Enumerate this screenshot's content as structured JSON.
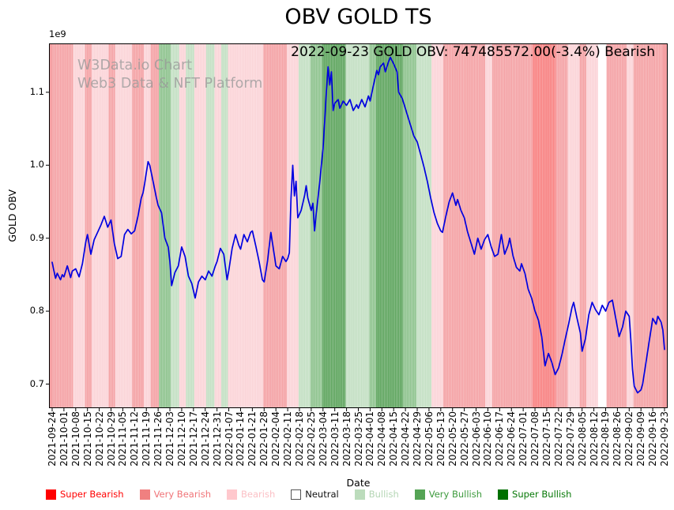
{
  "chart_data": {
    "type": "line",
    "title": "OBV GOLD TS",
    "annotation": "2022-09-23 GOLD OBV: 747485572.00(-3.4%) Bearish",
    "watermark": {
      "line1": "W3Data.io Chart",
      "line2": "Web3 Data & NFT Platform"
    },
    "xlabel": "Date",
    "ylabel": "GOLD OBV",
    "y_offset_text": "1e9",
    "ylim": [
      0.667,
      1.167
    ],
    "yticks": [
      "0.7",
      "0.8",
      "0.9",
      "1.0",
      "1.1"
    ],
    "x_tick_interval_days": 7,
    "xticks": [
      "2021-09-24",
      "2021-10-01",
      "2021-10-08",
      "2021-10-15",
      "2021-10-22",
      "2021-10-29",
      "2021-11-05",
      "2021-11-12",
      "2021-11-19",
      "2021-11-26",
      "2021-12-03",
      "2021-12-10",
      "2021-12-17",
      "2021-12-24",
      "2021-12-31",
      "2022-01-07",
      "2022-01-14",
      "2022-01-21",
      "2022-01-28",
      "2022-02-04",
      "2022-02-11",
      "2022-02-18",
      "2022-02-25",
      "2022-03-04",
      "2022-03-11",
      "2022-03-18",
      "2022-03-25",
      "2022-04-01",
      "2022-04-08",
      "2022-04-15",
      "2022-04-22",
      "2022-04-29",
      "2022-05-06",
      "2022-05-13",
      "2022-05-20",
      "2022-05-27",
      "2022-06-03",
      "2022-06-10",
      "2022-06-17",
      "2022-06-24",
      "2022-07-01",
      "2022-07-08",
      "2022-07-15",
      "2022-07-22",
      "2022-07-29",
      "2022-08-05",
      "2022-08-12",
      "2022-08-19",
      "2022-08-26",
      "2022-09-02",
      "2022-09-09",
      "2022-09-16",
      "2022-09-23"
    ],
    "last_point": {
      "date": "2022-09-23",
      "value": "747485572.00",
      "change_pct": "-3.4%",
      "sentiment": "Bearish"
    },
    "series": [
      {
        "name": "GOLD OBV",
        "color": "#0000e0",
        "x_unit": "days_since_2021-09-24",
        "y_unit": "1e9",
        "points": [
          [
            0,
            0.867
          ],
          [
            1,
            0.856
          ],
          [
            2,
            0.845
          ],
          [
            3,
            0.852
          ],
          [
            5,
            0.843
          ],
          [
            6,
            0.85
          ],
          [
            7,
            0.847
          ],
          [
            9,
            0.862
          ],
          [
            11,
            0.846
          ],
          [
            12,
            0.855
          ],
          [
            14,
            0.858
          ],
          [
            16,
            0.847
          ],
          [
            18,
            0.865
          ],
          [
            20,
            0.895
          ],
          [
            21,
            0.905
          ],
          [
            23,
            0.878
          ],
          [
            25,
            0.898
          ],
          [
            27,
            0.908
          ],
          [
            29,
            0.918
          ],
          [
            31,
            0.93
          ],
          [
            33,
            0.915
          ],
          [
            35,
            0.925
          ],
          [
            37,
            0.892
          ],
          [
            39,
            0.872
          ],
          [
            41,
            0.875
          ],
          [
            43,
            0.905
          ],
          [
            45,
            0.912
          ],
          [
            47,
            0.906
          ],
          [
            49,
            0.91
          ],
          [
            51,
            0.93
          ],
          [
            53,
            0.955
          ],
          [
            54,
            0.962
          ],
          [
            55,
            0.975
          ],
          [
            56,
            0.99
          ],
          [
            57,
            1.005
          ],
          [
            58,
            1.0
          ],
          [
            60,
            0.978
          ],
          [
            62,
            0.955
          ],
          [
            63,
            0.945
          ],
          [
            65,
            0.935
          ],
          [
            67,
            0.9
          ],
          [
            69,
            0.888
          ],
          [
            70,
            0.868
          ],
          [
            71,
            0.835
          ],
          [
            73,
            0.853
          ],
          [
            75,
            0.862
          ],
          [
            77,
            0.888
          ],
          [
            79,
            0.875
          ],
          [
            81,
            0.848
          ],
          [
            83,
            0.838
          ],
          [
            85,
            0.818
          ],
          [
            87,
            0.84
          ],
          [
            89,
            0.848
          ],
          [
            91,
            0.843
          ],
          [
            93,
            0.855
          ],
          [
            95,
            0.848
          ],
          [
            97,
            0.862
          ],
          [
            98,
            0.868
          ],
          [
            100,
            0.886
          ],
          [
            102,
            0.878
          ],
          [
            104,
            0.843
          ],
          [
            105,
            0.856
          ],
          [
            107,
            0.886
          ],
          [
            109,
            0.905
          ],
          [
            111,
            0.89
          ],
          [
            112,
            0.885
          ],
          [
            114,
            0.905
          ],
          [
            116,
            0.895
          ],
          [
            118,
            0.908
          ],
          [
            119,
            0.91
          ],
          [
            121,
            0.89
          ],
          [
            123,
            0.868
          ],
          [
            125,
            0.843
          ],
          [
            126,
            0.84
          ],
          [
            128,
            0.868
          ],
          [
            130,
            0.908
          ],
          [
            132,
            0.878
          ],
          [
            133,
            0.862
          ],
          [
            135,
            0.858
          ],
          [
            137,
            0.875
          ],
          [
            139,
            0.868
          ],
          [
            140,
            0.872
          ],
          [
            141,
            0.88
          ],
          [
            142,
            0.955
          ],
          [
            143,
            1.0
          ],
          [
            144,
            0.958
          ],
          [
            145,
            0.978
          ],
          [
            146,
            0.928
          ],
          [
            148,
            0.938
          ],
          [
            150,
            0.958
          ],
          [
            151,
            0.972
          ],
          [
            152,
            0.955
          ],
          [
            154,
            0.938
          ],
          [
            155,
            0.948
          ],
          [
            156,
            0.91
          ],
          [
            157,
            0.935
          ],
          [
            159,
            0.975
          ],
          [
            160,
            1.0
          ],
          [
            161,
            1.022
          ],
          [
            162,
            1.06
          ],
          [
            163,
            1.1
          ],
          [
            164,
            1.135
          ],
          [
            165,
            1.11
          ],
          [
            166,
            1.128
          ],
          [
            167,
            1.075
          ],
          [
            168,
            1.085
          ],
          [
            170,
            1.09
          ],
          [
            171,
            1.078
          ],
          [
            173,
            1.088
          ],
          [
            175,
            1.082
          ],
          [
            177,
            1.09
          ],
          [
            179,
            1.075
          ],
          [
            181,
            1.083
          ],
          [
            182,
            1.078
          ],
          [
            184,
            1.09
          ],
          [
            186,
            1.08
          ],
          [
            188,
            1.095
          ],
          [
            189,
            1.088
          ],
          [
            191,
            1.11
          ],
          [
            193,
            1.13
          ],
          [
            194,
            1.124
          ],
          [
            195,
            1.135
          ],
          [
            197,
            1.14
          ],
          [
            198,
            1.128
          ],
          [
            200,
            1.142
          ],
          [
            201,
            1.148
          ],
          [
            203,
            1.139
          ],
          [
            205,
            1.128
          ],
          [
            206,
            1.1
          ],
          [
            208,
            1.092
          ],
          [
            209,
            1.085
          ],
          [
            211,
            1.07
          ],
          [
            213,
            1.055
          ],
          [
            215,
            1.04
          ],
          [
            217,
            1.032
          ],
          [
            219,
            1.015
          ],
          [
            221,
            0.998
          ],
          [
            223,
            0.978
          ],
          [
            225,
            0.955
          ],
          [
            227,
            0.935
          ],
          [
            229,
            0.92
          ],
          [
            231,
            0.91
          ],
          [
            232,
            0.908
          ],
          [
            234,
            0.93
          ],
          [
            236,
            0.95
          ],
          [
            238,
            0.962
          ],
          [
            240,
            0.945
          ],
          [
            241,
            0.953
          ],
          [
            243,
            0.938
          ],
          [
            245,
            0.928
          ],
          [
            247,
            0.908
          ],
          [
            249,
            0.893
          ],
          [
            251,
            0.878
          ],
          [
            253,
            0.9
          ],
          [
            255,
            0.885
          ],
          [
            257,
            0.898
          ],
          [
            259,
            0.905
          ],
          [
            261,
            0.888
          ],
          [
            263,
            0.875
          ],
          [
            265,
            0.878
          ],
          [
            267,
            0.905
          ],
          [
            269,
            0.878
          ],
          [
            271,
            0.89
          ],
          [
            272,
            0.9
          ],
          [
            274,
            0.875
          ],
          [
            276,
            0.86
          ],
          [
            278,
            0.855
          ],
          [
            279,
            0.865
          ],
          [
            281,
            0.852
          ],
          [
            283,
            0.83
          ],
          [
            285,
            0.818
          ],
          [
            287,
            0.8
          ],
          [
            289,
            0.788
          ],
          [
            291,
            0.765
          ],
          [
            292,
            0.745
          ],
          [
            293,
            0.725
          ],
          [
            295,
            0.742
          ],
          [
            297,
            0.73
          ],
          [
            299,
            0.713
          ],
          [
            301,
            0.722
          ],
          [
            303,
            0.74
          ],
          [
            305,
            0.762
          ],
          [
            307,
            0.782
          ],
          [
            309,
            0.805
          ],
          [
            310,
            0.812
          ],
          [
            312,
            0.79
          ],
          [
            314,
            0.77
          ],
          [
            315,
            0.745
          ],
          [
            317,
            0.762
          ],
          [
            319,
            0.795
          ],
          [
            321,
            0.812
          ],
          [
            323,
            0.802
          ],
          [
            325,
            0.795
          ],
          [
            327,
            0.808
          ],
          [
            329,
            0.8
          ],
          [
            331,
            0.812
          ],
          [
            333,
            0.815
          ],
          [
            335,
            0.79
          ],
          [
            337,
            0.765
          ],
          [
            339,
            0.778
          ],
          [
            341,
            0.8
          ],
          [
            343,
            0.793
          ],
          [
            344,
            0.76
          ],
          [
            345,
            0.72
          ],
          [
            346,
            0.697
          ],
          [
            348,
            0.688
          ],
          [
            350,
            0.692
          ],
          [
            351,
            0.7
          ],
          [
            353,
            0.73
          ],
          [
            355,
            0.76
          ],
          [
            356,
            0.775
          ],
          [
            357,
            0.79
          ],
          [
            359,
            0.782
          ],
          [
            360,
            0.793
          ],
          [
            362,
            0.785
          ],
          [
            363,
            0.774
          ],
          [
            364,
            0.7475
          ]
        ]
      }
    ],
    "band_colors": {
      "super_bearish": "#f87f7f",
      "very_bearish": "#f4a0a3",
      "bearish": "#fbd3d7",
      "neutral": "#ffffff",
      "bullish": "#c2dfc2",
      "very_bullish": "#8cc28c",
      "super_bullish": "#5ba35b"
    },
    "bands": [
      {
        "start": 0,
        "end": 13,
        "class": "very_bearish"
      },
      {
        "start": 13,
        "end": 20,
        "class": "bearish"
      },
      {
        "start": 20,
        "end": 24,
        "class": "very_bearish"
      },
      {
        "start": 24,
        "end": 34,
        "class": "bearish"
      },
      {
        "start": 34,
        "end": 38,
        "class": "very_bearish"
      },
      {
        "start": 38,
        "end": 48,
        "class": "bearish"
      },
      {
        "start": 48,
        "end": 55,
        "class": "very_bearish"
      },
      {
        "start": 55,
        "end": 59,
        "class": "bearish"
      },
      {
        "start": 59,
        "end": 64,
        "class": "very_bearish"
      },
      {
        "start": 64,
        "end": 71,
        "class": "very_bullish"
      },
      {
        "start": 71,
        "end": 76,
        "class": "bullish"
      },
      {
        "start": 76,
        "end": 80,
        "class": "bearish"
      },
      {
        "start": 80,
        "end": 85,
        "class": "bullish"
      },
      {
        "start": 85,
        "end": 92,
        "class": "bearish"
      },
      {
        "start": 92,
        "end": 97,
        "class": "bullish"
      },
      {
        "start": 97,
        "end": 101,
        "class": "bearish"
      },
      {
        "start": 101,
        "end": 105,
        "class": "bullish"
      },
      {
        "start": 105,
        "end": 126,
        "class": "bearish"
      },
      {
        "start": 126,
        "end": 140,
        "class": "very_bearish"
      },
      {
        "start": 140,
        "end": 147,
        "class": "bearish"
      },
      {
        "start": 147,
        "end": 154,
        "class": "bullish"
      },
      {
        "start": 154,
        "end": 161,
        "class": "very_bullish"
      },
      {
        "start": 161,
        "end": 175,
        "class": "super_bullish"
      },
      {
        "start": 175,
        "end": 189,
        "class": "bullish"
      },
      {
        "start": 189,
        "end": 193,
        "class": "very_bullish"
      },
      {
        "start": 193,
        "end": 209,
        "class": "super_bullish"
      },
      {
        "start": 209,
        "end": 217,
        "class": "very_bullish"
      },
      {
        "start": 217,
        "end": 226,
        "class": "bullish"
      },
      {
        "start": 226,
        "end": 233,
        "class": "bearish"
      },
      {
        "start": 233,
        "end": 258,
        "class": "very_bearish"
      },
      {
        "start": 258,
        "end": 262,
        "class": "bearish"
      },
      {
        "start": 262,
        "end": 286,
        "class": "very_bearish"
      },
      {
        "start": 286,
        "end": 300,
        "class": "super_bearish"
      },
      {
        "start": 300,
        "end": 307,
        "class": "very_bearish"
      },
      {
        "start": 307,
        "end": 314,
        "class": "bearish"
      },
      {
        "start": 314,
        "end": 318,
        "class": "very_bearish"
      },
      {
        "start": 318,
        "end": 325,
        "class": "bearish"
      },
      {
        "start": 325,
        "end": 330,
        "class": "neutral"
      },
      {
        "start": 330,
        "end": 342,
        "class": "very_bearish"
      },
      {
        "start": 342,
        "end": 346,
        "class": "bearish"
      },
      {
        "start": 346,
        "end": 364,
        "class": "very_bearish"
      }
    ],
    "legend": [
      {
        "class": "super_bearish",
        "label": "Super Bearish",
        "color": "#ff0000",
        "edge_color": "#ff0000",
        "text_color": "#ff0000"
      },
      {
        "class": "very_bearish",
        "label": "Very Bearish",
        "color": "#f08080",
        "edge_color": "#f08080",
        "text_color": "#f07377"
      },
      {
        "class": "bearish",
        "label": "Bearish",
        "color": "#ffc8cd",
        "edge_color": "#ffc8cd",
        "text_color": "#fbc0c5"
      },
      {
        "class": "neutral",
        "label": "Neutral",
        "color": "#ffffff",
        "edge_color": "#555555",
        "text_color": "#111111"
      },
      {
        "class": "bullish",
        "label": "Bullish",
        "color": "#bcdcbc",
        "edge_color": "#bcdcbc",
        "text_color": "#b5d6b5"
      },
      {
        "class": "very_bullish",
        "label": "Very Bullish",
        "color": "#55a455",
        "edge_color": "#55a455",
        "text_color": "#3d9a3d"
      },
      {
        "class": "super_bullish",
        "label": "Super Bullish",
        "color": "#007000",
        "edge_color": "#007000",
        "text_color": "#067806"
      }
    ]
  }
}
